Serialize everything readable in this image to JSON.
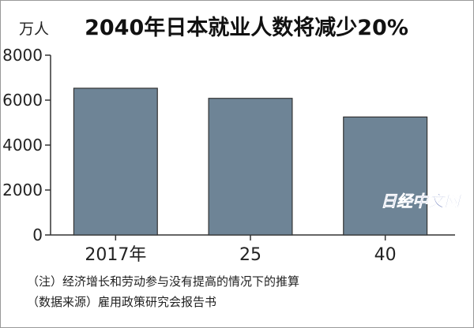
{
  "chart_data": {
    "type": "bar",
    "title": "2040年日本就业人数将减少20%",
    "unit_label": "万人",
    "categories": [
      "2017年",
      "25",
      "40"
    ],
    "values": [
      6530,
      6080,
      5250
    ],
    "ylim": [
      0,
      8000
    ],
    "yticks": [
      0,
      2000,
      4000,
      6000,
      8000
    ],
    "grid": false,
    "legend": "none",
    "bar_color": "#6e8496",
    "notes": [
      "（注）经济增长和劳动参与没有提高的情况下的推算",
      "（数据来源）雇用政策研究会报告书"
    ]
  },
  "watermark": {
    "text": "日经中文网",
    "color": "#3c53a5"
  },
  "frame_color": "#999999"
}
